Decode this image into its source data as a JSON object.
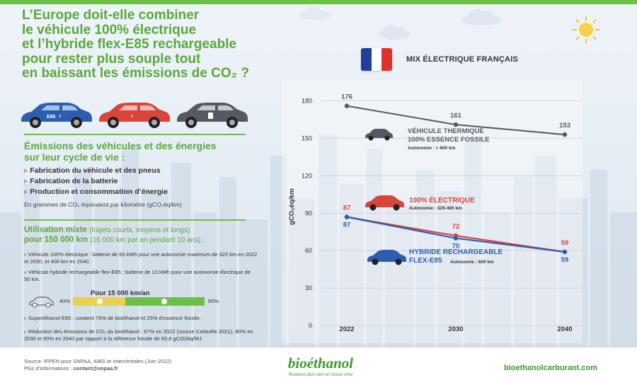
{
  "title": {
    "line1": "L’Europe doit-elle combiner",
    "line2": "le véhicule 100% électrique",
    "line3": "et l’hybride flex-E85 rechargeable",
    "line4": "pour rester plus souple tout",
    "line5": "en baissant les émissions de CO₂ ?"
  },
  "cars_row": {
    "car1_badge": "E85",
    "colors": {
      "blue": "#2e5db0",
      "red": "#d8453b",
      "grey": "#555a60"
    }
  },
  "left": {
    "subtitle_line1": "Émissions des véhicules et des énergies",
    "subtitle_line2": "sur leur cycle de vie :",
    "bullets": [
      "Fabrication du véhicule et des pneus",
      "Fabrication de la batterie",
      "Production et consommation d’énergie"
    ],
    "unit_note": "En grammes de CO₂ équivalent par kilomètre (gCO₂éq/km)",
    "mix_title_bold": "Utilisation mixte",
    "mix_title_light": "(trajets courts, moyens et longs)",
    "mix_sub_bold": "pour 150 000 km",
    "mix_sub_light": "(15 000 km par an pendant 10 ans) :",
    "note_ev": "Véhicule 100% électrique : batterie de 60 kWh pour une autonomie maximum de 320 km en 2022 et 2030, et 400 km en 2040.",
    "note_phev": "Véhicule hybride rechargeable flex-E85 : batterie de 10 kWh pour une autonomie électrique de 50 km.",
    "range_title": "Pour 15 000 km/an",
    "range_left_pct": "40%",
    "range_right_pct": "60%",
    "range_split": {
      "fuel": 0.4,
      "electric": 0.6
    },
    "note_e85": "Superéthanol-E85 : contient 75% de bioéthanol et 25% d’essence fossile.",
    "note_reduction": "Réduction des émissions de CO₂ du bioéthanol : 67% en 2022 (source CarbuRe 2021), 80% en 2030 et 90% en 2040 par rapport à la référence fossile de 83,8 gCO2éq/MJ."
  },
  "chart_header": {
    "title": "MIX ÉLECTRIQUE FRANÇAIS",
    "flag_colors": [
      "#1f3f9a",
      "#ffffff",
      "#e0322d"
    ]
  },
  "chart_data": {
    "type": "line",
    "x": [
      "2022",
      "2030",
      "2040"
    ],
    "ylabel": "gCO₂éq/km",
    "yticks": [
      0,
      30,
      60,
      90,
      120,
      150,
      180
    ],
    "ylim": [
      0,
      190
    ],
    "series": [
      {
        "name": "VÉHICULE THERMIQUE 100% ESSENCE FOSSILE",
        "values": [
          176,
          161,
          153
        ],
        "color": "#555a60"
      },
      {
        "name": "100% ÉLECTRIQUE",
        "values": [
          87,
          72,
          59
        ],
        "color": "#d8453b"
      },
      {
        "name": "HYBRIDE RECHARGEABLE FLEX-E85",
        "values": [
          87,
          70,
          59
        ],
        "color": "#2e5db0"
      }
    ]
  },
  "legend": {
    "thermal_line1": "VÉHICULE THERMIQUE",
    "thermal_line2": "100% ESSENCE FOSSILE",
    "thermal_sub": "Autonomie : > 600 km",
    "ev_line1": "100% ÉLECTRIQUE",
    "ev_sub": "Autonomie : 320-400 km",
    "phev_line1": "HYBRIDE RECHARGEABLE",
    "phev_line2": "FLEX-E85",
    "phev_sub": "Autonomie : 600 km"
  },
  "footer": {
    "source": "Source: IFPEN pour SNPAA, AIBS et Intercéréales (Juin 2022)",
    "contact_prefix": "Plus d’informations :",
    "contact_email": "contact@snpaa.fr",
    "brand": "bioéthanol",
    "tagline": "Roulons plus vert et moins cher",
    "website": "bioethanolcarburant.com"
  }
}
